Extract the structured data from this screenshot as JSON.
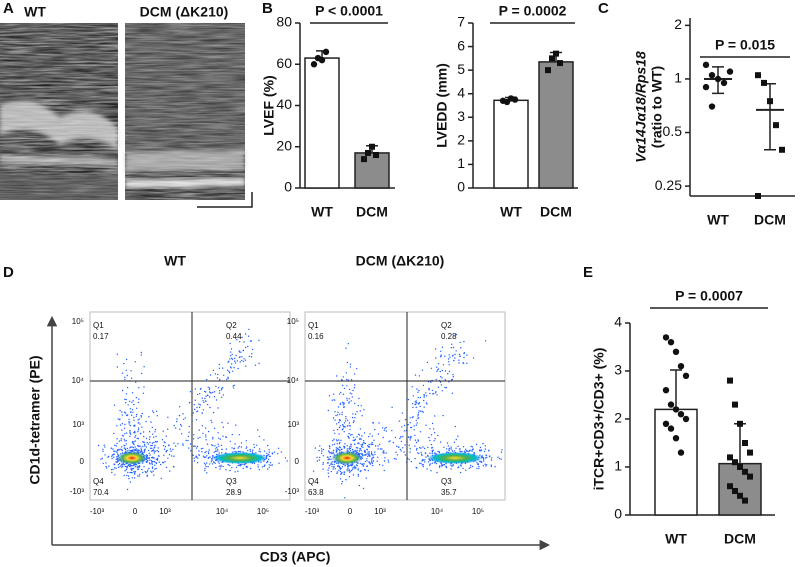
{
  "panel_labels": [
    "A",
    "B",
    "C",
    "D",
    "E"
  ],
  "echo": {
    "titles": [
      "WT",
      "DCM (ΔK210)"
    ]
  },
  "flow": {
    "titles": [
      "WT",
      "DCM (ΔK210)"
    ],
    "x_label": "CD3 (APC)",
    "y_label": "CD1d-tetramer (PE)",
    "x_ticks": [
      "-10³",
      "0",
      "10³",
      "10⁴",
      "10⁵"
    ],
    "y_ticks": [
      "10⁵",
      "10⁴",
      "10³",
      "0",
      "-10³"
    ],
    "plots": [
      {
        "quadrants": [
          {
            "name": "Q1",
            "value": 0.17
          },
          {
            "name": "Q2",
            "value": 0.44
          },
          {
            "name": "Q3",
            "value": 28.9
          },
          {
            "name": "Q4",
            "value": 70.4
          }
        ]
      },
      {
        "quadrants": [
          {
            "name": "Q1",
            "value": 0.16
          },
          {
            "name": "Q2",
            "value": 0.28
          },
          {
            "name": "Q3",
            "value": 35.7
          },
          {
            "name": "Q4",
            "value": 63.8
          }
        ]
      }
    ]
  },
  "chart_data": [
    {
      "type": "bar",
      "y_label": "LVEF (%)",
      "categories": [
        "WT",
        "DCM"
      ],
      "colors": [
        "#ffffff",
        "#8c8c8c"
      ],
      "values": [
        63,
        17
      ],
      "errors": [
        3.5,
        3.5
      ],
      "points": [
        [
          60,
          63,
          62,
          66
        ],
        [
          14,
          17,
          20,
          16
        ]
      ],
      "annotation": "P < 0.0001",
      "ylim": [
        0,
        80
      ],
      "yticks": [
        0,
        20,
        40,
        60,
        80
      ]
    },
    {
      "type": "bar",
      "y_label": "LVEDD (mm)",
      "categories": [
        "WT",
        "DCM"
      ],
      "colors": [
        "#ffffff",
        "#8c8c8c"
      ],
      "values": [
        3.72,
        5.35
      ],
      "errors": [
        0.12,
        0.4
      ],
      "points": [
        [
          3.7,
          3.65,
          3.8,
          3.75
        ],
        [
          5.0,
          5.5,
          5.7,
          5.3
        ]
      ],
      "annotation": "P = 0.0002",
      "ylim": [
        0,
        7
      ],
      "yticks": [
        0,
        1,
        2,
        3,
        4,
        5,
        6,
        7
      ]
    },
    {
      "type": "dot",
      "log_scale": true,
      "y_label": [
        "Vα14Jα18/Rps18",
        "(ratio to WT)"
      ],
      "categories": [
        "WT",
        "DCM"
      ],
      "values": [
        1.0,
        0.67
      ],
      "errors": [
        0.17,
        0.27
      ],
      "points": [
        [
          1.2,
          1.05,
          1.0,
          0.95,
          1.1,
          0.9,
          0.7
        ],
        [
          1.05,
          0.95,
          0.75,
          0.55,
          0.4,
          0.22
        ]
      ],
      "annotation": "P = 0.015",
      "ylim": [
        0.22,
        2.2
      ],
      "yticks": [
        0.25,
        0.5,
        1,
        2
      ]
    },
    {
      "type": "bar",
      "y_label": "iTCR+CD3+/CD3+ (%)",
      "categories": [
        "WT",
        "DCM"
      ],
      "colors": [
        "#ffffff",
        "#8c8c8c"
      ],
      "values": [
        2.2,
        1.07
      ],
      "errors": [
        0.82,
        0.83
      ],
      "points": [
        [
          3.7,
          3.6,
          3.4,
          3.1,
          2.9,
          2.6,
          2.3,
          2.2,
          2.1,
          2.0,
          1.9,
          1.8,
          1.6,
          1.3
        ],
        [
          2.8,
          2.3,
          1.9,
          1.5,
          1.3,
          1.2,
          1.1,
          1.0,
          0.9,
          0.8,
          0.6,
          0.5,
          0.4,
          0.3
        ]
      ],
      "annotation": "P = 0.0007",
      "ylim": [
        0,
        4
      ],
      "yticks": [
        0,
        1,
        2,
        3,
        4
      ]
    }
  ]
}
